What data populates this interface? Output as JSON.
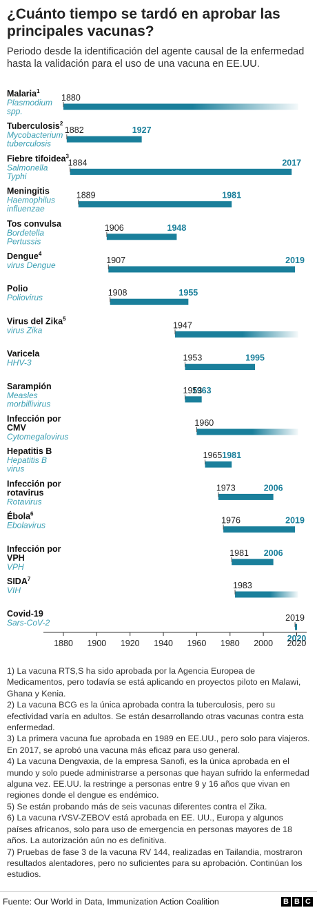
{
  "chart_data": {
    "type": "range",
    "title": "¿Cuánto tiempo se tardó en aprobar las principales vacunas?",
    "subtitle": "Periodo desde la identificación del agente causal de la enfermedad hasta la validación para el uso de una vacuna en EE.UU.",
    "color": "#1a7f9b",
    "label_color": "#1a7f9b",
    "pathogen_color": "#3a9fb3",
    "rows": [
      {
        "name": [
          "Malaria"
        ],
        "sup": "1",
        "pathogen": [
          "Plasmodium",
          "spp."
        ],
        "start": 1880,
        "end": null
      },
      {
        "name": [
          "Tuberculosis"
        ],
        "sup": "2",
        "pathogen": [
          "Mycobacterium",
          "tuberculosis"
        ],
        "start": 1882,
        "end": 1927
      },
      {
        "name": [
          "Fiebre tifoidea"
        ],
        "sup": "3",
        "pathogen": [
          "Salmonella",
          "Typhi"
        ],
        "start": 1884,
        "end": 2017
      },
      {
        "name": [
          "Meningitis"
        ],
        "sup": null,
        "pathogen": [
          "Haemophilus",
          "influenzae"
        ],
        "start": 1889,
        "end": 1981
      },
      {
        "name": [
          "Tos convulsa"
        ],
        "sup": null,
        "pathogen": [
          "Bordetella",
          "Pertussis"
        ],
        "start": 1906,
        "end": 1948
      },
      {
        "name": [
          "Dengue"
        ],
        "sup": "4",
        "pathogen": [
          "virus Dengue"
        ],
        "start": 1907,
        "end": 2019
      },
      {
        "name": [
          "Polio"
        ],
        "sup": null,
        "pathogen": [
          "Poliovirus"
        ],
        "start": 1908,
        "end": 1955
      },
      {
        "name": [
          "Virus del Zika"
        ],
        "sup": "5",
        "pathogen": [
          "virus Zika"
        ],
        "start": 1947,
        "end": null
      },
      {
        "name": [
          "Varicela"
        ],
        "sup": null,
        "pathogen": [
          "HHV-3"
        ],
        "start": 1953,
        "end": 1995
      },
      {
        "name": [
          "Sarampión"
        ],
        "sup": null,
        "pathogen": [
          "Measles",
          "morbillivirus"
        ],
        "start": 1953,
        "end": 1963
      },
      {
        "name": [
          "Infección por",
          "CMV"
        ],
        "sup": null,
        "pathogen": [
          "Cytomegalovirus"
        ],
        "start": 1960,
        "end": null
      },
      {
        "name": [
          "Hepatitis B"
        ],
        "sup": null,
        "pathogen": [
          "Hepatitis B",
          "virus"
        ],
        "start": 1965,
        "end": 1981
      },
      {
        "name": [
          "Infección por",
          "rotavirus"
        ],
        "sup": null,
        "pathogen": [
          "Rotavirus"
        ],
        "start": 1973,
        "end": 2006
      },
      {
        "name": [
          "Ébola"
        ],
        "sup": "6",
        "pathogen": [
          "Ebolavirus"
        ],
        "start": 1976,
        "end": 2019
      },
      {
        "name": [
          "Infección por",
          "VPH"
        ],
        "sup": null,
        "pathogen": [
          "VPH"
        ],
        "start": 1981,
        "end": 2006
      },
      {
        "name": [
          "SIDA"
        ],
        "sup": "7",
        "pathogen": [
          "VIH"
        ],
        "start": 1983,
        "end": null
      },
      {
        "name": [
          "Covid-19"
        ],
        "sup": null,
        "pathogen": [
          "Sars-CoV-2"
        ],
        "start": 2019,
        "end": 2020
      }
    ],
    "xlim": [
      1868,
      2026
    ],
    "xticks": [
      1880,
      1900,
      1920,
      1940,
      1960,
      1980,
      2000,
      2020
    ],
    "notes": [
      "1) La vacuna RTS,S ha sido aprobada por la Agencia Europea de Medicamentos, pero todavía se está aplicando en proyectos piloto en Malawi, Ghana y Kenia.",
      "2) La vacuna BCG es la única aprobada contra la tuberculosis, pero su efectividad varía en adultos. Se están desarrollando otras vacunas contra esta enfermedad.",
      "3) La primera vacuna fue aprobada en 1989 en EE.UU., pero solo para viajeros. En 2017, se aprobó una vacuna más eficaz para uso general.",
      "4) La vacuna Dengvaxia, de la empresa Sanofi, es la única aprobada en el mundo y solo puede administrarse a personas que hayan sufrido la enfermedad alguna vez. EE.UU. la restringe a personas entre 9 y 16 años que vivan en regiones donde el dengue es endémico.",
      "5) Se están probando más de seis vacunas diferentes contra el Zika.",
      "6) La vacuna rVSV-ZEBOV está aprobada en EE. UU., Europa y algunos países africanos, solo para uso de emergencia en personas mayores de 18 años. La autorización aún no es definitiva.",
      "7) Pruebas de fase 3 de la vacuna RV 144, realizadas en Tailandia, mostraron resultados alentadores, pero no suficientes para su aprobación. Continúan los estudios."
    ],
    "source": "Fuente: Our World in Data, Immunization Action Coalition",
    "logo": [
      "B",
      "B",
      "C"
    ]
  }
}
